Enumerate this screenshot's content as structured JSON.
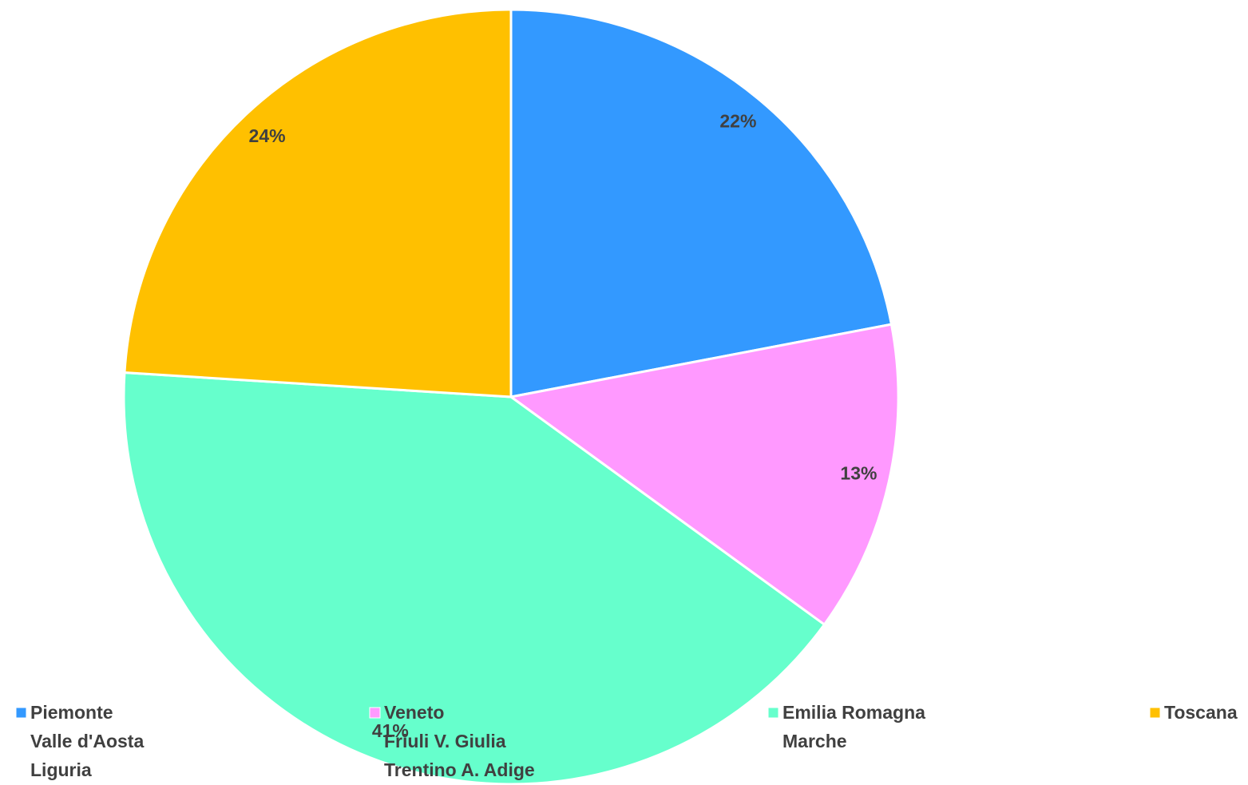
{
  "chart_data": {
    "type": "pie",
    "categories": [
      [
        "Piemonte",
        "Valle d'Aosta",
        "Liguria"
      ],
      [
        "Veneto",
        "Friuli V. Giulia",
        "Trentino A. Adige"
      ],
      [
        "Emilia Romagna",
        "Marche"
      ],
      [
        "Toscana"
      ]
    ],
    "values": [
      22,
      13,
      41,
      24
    ],
    "value_labels": [
      "22%",
      "13%",
      "41%",
      "24%"
    ],
    "colors": [
      "#3399ff",
      "#ff99ff",
      "#66ffcc",
      "#ffc000"
    ],
    "legend": "bottom"
  }
}
